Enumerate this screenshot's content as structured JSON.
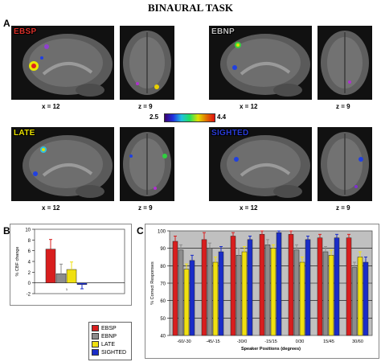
{
  "title": "BINAURAL TASK",
  "panel_labels": {
    "a": "A",
    "b": "B",
    "c": "C"
  },
  "brain_panels": [
    {
      "condition": "EBSP",
      "label_color": "#d8302a",
      "sagittal": "x = 12",
      "axial": "z = 9"
    },
    {
      "condition": "EBNP",
      "label_color": "#c0c0c0",
      "sagittal": "x = 12",
      "axial": "z = 9"
    },
    {
      "condition": "LATE",
      "label_color": "#e8e000",
      "sagittal": "x = 12",
      "axial": "z = 9"
    },
    {
      "condition": "SIGHTED",
      "label_color": "#2a3cd8",
      "sagittal": "x = 12",
      "axial": "z = 9"
    }
  ],
  "colorbar": {
    "min": "2.5",
    "max": "4.4"
  },
  "legend": [
    {
      "name": "EBSP",
      "color": "#d81e1e"
    },
    {
      "name": "EBNP",
      "color": "#8c8c8c"
    },
    {
      "name": "LATE",
      "color": "#f0e010"
    },
    {
      "name": "SIGHTED",
      "color": "#1a2cc8"
    }
  ],
  "chart_data": [
    {
      "type": "bar",
      "title": "",
      "xlabel": "",
      "ylabel": "% CBF change",
      "ylim": [
        -2,
        10
      ],
      "yticks": [
        -2,
        0,
        2,
        4,
        6,
        8,
        10
      ],
      "categories": [
        "1"
      ],
      "series": [
        {
          "name": "EBSP",
          "values": [
            6.3
          ],
          "errors": [
            1.8
          ]
        },
        {
          "name": "EBNP",
          "values": [
            1.7
          ],
          "errors": [
            1.8
          ]
        },
        {
          "name": "LATE",
          "values": [
            2.5
          ],
          "errors": [
            1.4
          ]
        },
        {
          "name": "SIGHTED",
          "values": [
            -0.3
          ],
          "errors": [
            0.8
          ]
        }
      ]
    },
    {
      "type": "bar",
      "title": "",
      "xlabel": "Speaker Positions (degrees)",
      "ylabel": "% Correct Responses",
      "ylim": [
        40,
        100
      ],
      "yticks": [
        40,
        50,
        60,
        70,
        80,
        90,
        100
      ],
      "categories": [
        "-60/-30",
        "-45/-15",
        "-30/0",
        "-15/15",
        "0/30",
        "15/45",
        "30/60"
      ],
      "series": [
        {
          "name": "EBSP",
          "values": [
            94,
            95,
            97,
            98,
            98,
            96,
            96
          ],
          "errors": [
            3,
            4,
            2,
            2,
            2,
            2,
            2
          ]
        },
        {
          "name": "EBNP",
          "values": [
            89,
            90,
            86,
            92,
            89,
            88,
            79
          ],
          "errors": [
            3,
            3,
            4,
            3,
            3,
            3,
            3
          ]
        },
        {
          "name": "LATE",
          "values": [
            78,
            82,
            88,
            90,
            82,
            86,
            85
          ],
          "errors": [
            3,
            3,
            3,
            2,
            3,
            3,
            3
          ]
        },
        {
          "name": "SIGHTED",
          "values": [
            83,
            88,
            95,
            99,
            95,
            96,
            82
          ],
          "errors": [
            3,
            3,
            2,
            1,
            2,
            2,
            3
          ]
        }
      ]
    }
  ]
}
